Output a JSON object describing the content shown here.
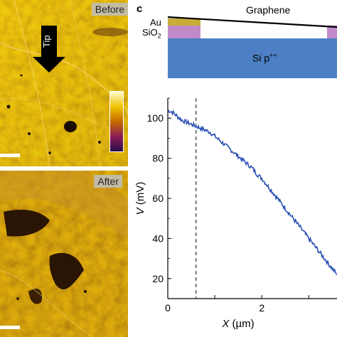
{
  "afm": {
    "top_label": "Before",
    "bottom_label": "After",
    "tip_label": "Tip",
    "colors": {
      "dark": "#3a1f05",
      "mid": "#a56b00",
      "light": "#f3da6a"
    }
  },
  "colorbar": {
    "colors": [
      "#fffbd0",
      "#f0c400",
      "#c56a00",
      "#8a1e55",
      "#2a0a4a"
    ]
  },
  "panel_c": {
    "letter": "c",
    "schematic": {
      "au_label": "Au",
      "sio2_label_main": "SiO",
      "sio2_label_sub": "2",
      "graphene_label": "Graphene",
      "si_label_main": "Si p",
      "si_label_sup": "++",
      "colors": {
        "au": "#c9ac3a",
        "sio2": "#c08ac8",
        "si": "#4d7fc4"
      }
    }
  },
  "chart_data": {
    "type": "line",
    "xlabel_var": "X",
    "xlabel_unit": "(µm)",
    "ylabel_var": "V",
    "ylabel_unit": "(mV)",
    "xlim": [
      0,
      3.6
    ],
    "ylim": [
      10,
      110
    ],
    "xticks": [
      "0",
      "2"
    ],
    "yticks": [
      "20",
      "40",
      "60",
      "80",
      "100"
    ],
    "dashed_x": 0.6,
    "line_color": "#2a50b4",
    "series": [
      {
        "x": [
          0,
          0.1,
          0.2,
          0.3,
          0.4,
          0.5,
          0.6,
          0.7,
          0.8,
          0.9,
          1.0,
          1.1,
          1.2,
          1.3,
          1.4,
          1.5,
          1.6,
          1.7,
          1.8,
          1.9,
          2.0,
          2.1,
          2.2,
          2.3,
          2.4,
          2.5,
          2.6,
          2.7,
          2.8,
          2.9,
          3.0,
          3.1,
          3.2,
          3.3,
          3.4,
          3.5,
          3.6
        ],
        "y": [
          104,
          103,
          101,
          99,
          98,
          97,
          96,
          95,
          94,
          93,
          91,
          89,
          87,
          85,
          83,
          81,
          79,
          77,
          75,
          72,
          70,
          67,
          64,
          61,
          58,
          55,
          52,
          49,
          46,
          43,
          40,
          37,
          34,
          31,
          28,
          25,
          22
        ]
      }
    ]
  }
}
